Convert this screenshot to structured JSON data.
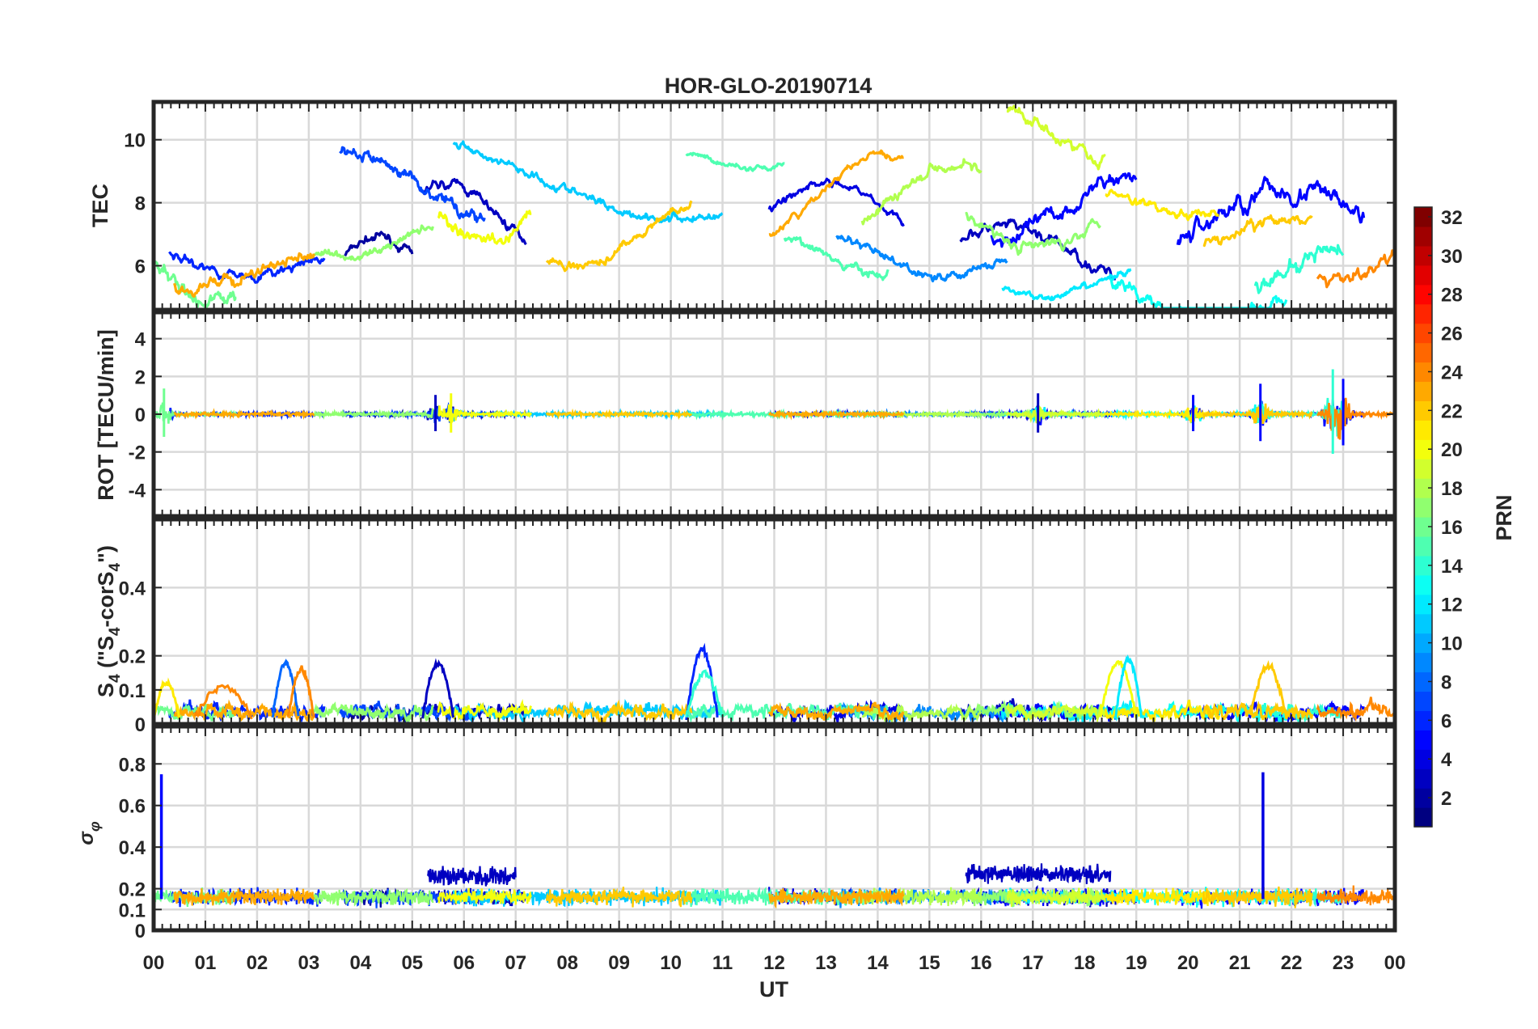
{
  "chart_data": {
    "type": "line",
    "title": "HOR-GLO-20190714",
    "xlabel": "UT",
    "x_tick_labels": [
      "00",
      "01",
      "02",
      "03",
      "04",
      "05",
      "06",
      "07",
      "08",
      "09",
      "10",
      "11",
      "12",
      "13",
      "14",
      "15",
      "16",
      "17",
      "18",
      "19",
      "20",
      "21",
      "22",
      "23",
      "00"
    ],
    "xlim": [
      0,
      24
    ],
    "panels": [
      {
        "id": "tec",
        "ylabel": "TEC",
        "ylim": [
          4.6,
          11.2
        ],
        "yticks": [
          6,
          8,
          10
        ],
        "ytick_labels": [
          "6",
          "8",
          "10"
        ],
        "series": [
          {
            "prn": 2,
            "start": 3.7,
            "end": 5.0,
            "base": 6.3,
            "amp": 0.6,
            "noise": 0.25
          },
          {
            "prn": 3,
            "start": 5.2,
            "end": 7.2,
            "base": 7.6,
            "amp": 1.0,
            "noise": 0.25
          },
          {
            "prn": 4,
            "start": 11.9,
            "end": 14.5,
            "base": 7.6,
            "amp": 1.0,
            "noise": 0.2
          },
          {
            "prn": 3,
            "start": 15.6,
            "end": 18.6,
            "base": 6.3,
            "amp": 0.9,
            "noise": 0.3
          },
          {
            "prn": 5,
            "start": 16.2,
            "end": 19.0,
            "base": 7.9,
            "amp": 1.0,
            "noise": 0.4
          },
          {
            "prn": 6,
            "start": 0.3,
            "end": 3.3,
            "base": 6.3,
            "amp": 0.6,
            "noise": 0.25
          },
          {
            "prn": 5,
            "start": 19.8,
            "end": 23.4,
            "base": 7.2,
            "amp": 1.2,
            "noise": 0.5
          },
          {
            "prn": 7,
            "start": 3.6,
            "end": 6.4,
            "base": 8.5,
            "amp": 1.0,
            "noise": 0.35
          },
          {
            "prn": 9,
            "start": 13.2,
            "end": 16.5,
            "base": 6.6,
            "amp": 0.9,
            "noise": 0.25
          },
          {
            "prn": 11,
            "start": 5.8,
            "end": 11.0,
            "base": 8.7,
            "amp": 1.2,
            "noise": 0.25
          },
          {
            "prn": 12,
            "start": 16.4,
            "end": 18.9,
            "base": 5.6,
            "amp": 0.6,
            "noise": 0.2
          },
          {
            "prn": 13,
            "start": 18.5,
            "end": 21.9,
            "base": 5.2,
            "amp": 0.8,
            "noise": 0.35
          },
          {
            "prn": 14,
            "start": 21.3,
            "end": 23.0,
            "base": 6.0,
            "amp": 0.6,
            "noise": 0.45
          },
          {
            "prn": 15,
            "start": 10.3,
            "end": 12.2,
            "base": 9.4,
            "amp": 0.3,
            "noise": 0.15
          },
          {
            "prn": 15,
            "start": 12.2,
            "end": 14.2,
            "base": 6.3,
            "amp": 0.6,
            "noise": 0.25
          },
          {
            "prn": 16,
            "start": 0.0,
            "end": 1.6,
            "base": 5.6,
            "amp": 0.8,
            "noise": 0.45
          },
          {
            "prn": 17,
            "start": 15.7,
            "end": 18.3,
            "base": 7.6,
            "amp": 1.0,
            "noise": 0.3
          },
          {
            "prn": 18,
            "start": 13.7,
            "end": 16.0,
            "base": 8.3,
            "amp": 1.0,
            "noise": 0.3
          },
          {
            "prn": 17,
            "start": 3.1,
            "end": 5.4,
            "base": 6.8,
            "amp": 0.6,
            "noise": 0.25
          },
          {
            "prn": 19,
            "start": 16.5,
            "end": 18.4,
            "base": 10.2,
            "amp": 0.7,
            "noise": 0.35
          },
          {
            "prn": 21,
            "start": 18.4,
            "end": 20.6,
            "base": 8.0,
            "amp": 0.4,
            "noise": 0.25
          },
          {
            "prn": 20,
            "start": 5.5,
            "end": 7.3,
            "base": 7.6,
            "amp": 0.8,
            "noise": 0.35
          },
          {
            "prn": 22,
            "start": 7.6,
            "end": 10.4,
            "base": 7.0,
            "amp": 1.0,
            "noise": 0.25
          },
          {
            "prn": 23,
            "start": 11.9,
            "end": 14.5,
            "base": 8.2,
            "amp": 1.3,
            "noise": 0.2
          },
          {
            "prn": 23,
            "start": 0.4,
            "end": 3.1,
            "base": 5.8,
            "amp": 0.5,
            "noise": 0.3
          },
          {
            "prn": 24,
            "start": 22.5,
            "end": 24.0,
            "base": 5.9,
            "amp": 0.4,
            "noise": 0.35
          },
          {
            "prn": 22,
            "start": 20.3,
            "end": 22.4,
            "base": 7.0,
            "amp": 0.5,
            "noise": 0.3
          }
        ]
      },
      {
        "id": "rot",
        "ylabel": "ROT [TECU/min]",
        "ylim": [
          -5.4,
          5.4
        ],
        "yticks": [
          -4,
          -2,
          0,
          2,
          4
        ],
        "ytick_labels": [
          "-4",
          "-2",
          "0",
          "2",
          "4"
        ],
        "bursts": [
          {
            "x": 0.2,
            "amp": 1.6,
            "prn": 16
          },
          {
            "x": 5.45,
            "amp": 1.2,
            "prn": 3
          },
          {
            "x": 5.75,
            "amp": 1.3,
            "prn": 20
          },
          {
            "x": 17.1,
            "amp": 1.3,
            "prn": 3
          },
          {
            "x": 20.1,
            "amp": 1.2,
            "prn": 5
          },
          {
            "x": 21.4,
            "amp": 1.9,
            "prn": 5
          },
          {
            "x": 22.8,
            "amp": 2.8,
            "prn": 14
          },
          {
            "x": 23.0,
            "amp": 2.2,
            "prn": 5
          }
        ]
      },
      {
        "id": "s4",
        "ylabel": "S4 (\"S4-corS4\")",
        "ylim": [
          0,
          0.6
        ],
        "yticks": [
          0,
          0.1,
          0.2,
          0.4
        ],
        "ytick_labels": [
          "0",
          "0.1",
          "0.2",
          "0.4"
        ],
        "bumps": [
          {
            "start": 0.0,
            "end": 0.5,
            "peak": 0.12,
            "prn": 21
          },
          {
            "start": 0.8,
            "end": 1.9,
            "peak": 0.11,
            "prn": 24
          },
          {
            "start": 2.3,
            "end": 2.8,
            "peak": 0.18,
            "prn": 8
          },
          {
            "start": 2.6,
            "end": 3.1,
            "peak": 0.16,
            "prn": 24
          },
          {
            "start": 5.2,
            "end": 5.8,
            "peak": 0.18,
            "prn": 3
          },
          {
            "start": 10.3,
            "end": 10.9,
            "peak": 0.22,
            "prn": 6
          },
          {
            "start": 10.3,
            "end": 11.0,
            "peak": 0.15,
            "prn": 14
          },
          {
            "start": 18.3,
            "end": 19.0,
            "peak": 0.18,
            "prn": 20
          },
          {
            "start": 18.6,
            "end": 19.1,
            "peak": 0.19,
            "prn": 12
          },
          {
            "start": 21.2,
            "end": 21.9,
            "peak": 0.17,
            "prn": 22
          }
        ]
      },
      {
        "id": "sigma",
        "ylabel": "σφ",
        "ylim": [
          0,
          0.98
        ],
        "yticks": [
          0,
          0.1,
          0.2,
          0.4,
          0.6,
          0.8
        ],
        "ytick_labels": [
          "0",
          "0.1",
          "0.2",
          "0.4",
          "0.6",
          "0.8"
        ],
        "spikes": [
          {
            "x": 0.15,
            "value": 0.75,
            "prn": 5
          },
          {
            "x": 21.45,
            "value": 0.76,
            "prn": 4
          }
        ],
        "elevated": [
          {
            "start": 5.3,
            "end": 7.0,
            "level": 0.26,
            "prn": 3
          },
          {
            "start": 15.7,
            "end": 18.5,
            "level": 0.27,
            "prn": 3
          }
        ]
      }
    ],
    "colorbar": {
      "label": "PRN",
      "range": [
        1,
        32
      ],
      "ticks": [
        "2",
        "4",
        "6",
        "8",
        "10",
        "12",
        "14",
        "16",
        "18",
        "20",
        "22",
        "24",
        "26",
        "28",
        "30",
        "32"
      ],
      "colormap": "jet"
    }
  }
}
